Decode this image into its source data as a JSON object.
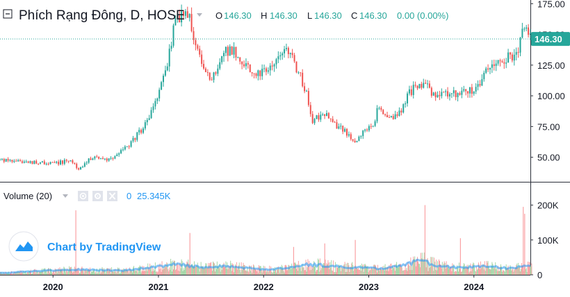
{
  "header": {
    "symbol_title": "Phích Rạng Đông, D, HOSE",
    "ohlc": [
      {
        "key": "O",
        "value": "146.30"
      },
      {
        "key": "H",
        "value": "146.30"
      },
      {
        "key": "L",
        "value": "146.30"
      },
      {
        "key": "C",
        "value": "146.30"
      }
    ],
    "change": "0.00 (0.00%)"
  },
  "last_price_label": "146.30",
  "volume_panel": {
    "title": "Volume (20)",
    "value_prefix": "0",
    "value": "25.345K"
  },
  "watermark": {
    "text": "Chart by TradingView"
  },
  "colors": {
    "up": "#26a69a",
    "down": "#ef5350",
    "up_volume": "#a5d6a7",
    "down_volume": "#faa1a4",
    "volume_ma": "#2196f3",
    "price_line": "#26a69a",
    "text": "#131722",
    "accent": "#2196f3"
  },
  "chart_data": {
    "type": "candlestick",
    "price_axis": {
      "ticks": [
        "50.00",
        "75.00",
        "100.00",
        "125.00",
        "150.00",
        "175.00"
      ],
      "range": [
        30,
        178
      ]
    },
    "volume_axis": {
      "ticks": [
        "0",
        "100K",
        "200K"
      ],
      "range": [
        0,
        225000
      ]
    },
    "time_axis": {
      "ticks": [
        "2020",
        "2021",
        "2022",
        "2023",
        "2024"
      ],
      "range": [
        "2019-07-01",
        "2024-07-15"
      ]
    },
    "price_path": [
      [
        "2019-07-01",
        48
      ],
      [
        "2019-10-01",
        46
      ],
      [
        "2020-01-01",
        45
      ],
      [
        "2020-03-01",
        47
      ],
      [
        "2020-04-01",
        40
      ],
      [
        "2020-05-15",
        50
      ],
      [
        "2020-07-15",
        48
      ],
      [
        "2020-09-15",
        58
      ],
      [
        "2020-11-01",
        72
      ],
      [
        "2020-12-01",
        85
      ],
      [
        "2021-01-01",
        100
      ],
      [
        "2021-02-01",
        125
      ],
      [
        "2021-03-01",
        162
      ],
      [
        "2021-04-15",
        165
      ],
      [
        "2021-05-15",
        140
      ],
      [
        "2021-06-15",
        115
      ],
      [
        "2021-07-15",
        118
      ],
      [
        "2021-08-15",
        135
      ],
      [
        "2021-09-15",
        138
      ],
      [
        "2021-10-15",
        125
      ],
      [
        "2021-11-15",
        122
      ],
      [
        "2022-01-01",
        118
      ],
      [
        "2022-02-15",
        128
      ],
      [
        "2022-04-01",
        137
      ],
      [
        "2022-05-01",
        120
      ],
      [
        "2022-06-01",
        100
      ],
      [
        "2022-06-20",
        80
      ],
      [
        "2022-08-01",
        85
      ],
      [
        "2022-09-15",
        75
      ],
      [
        "2022-10-15",
        70
      ],
      [
        "2022-11-15",
        62
      ],
      [
        "2022-12-15",
        72
      ],
      [
        "2023-01-15",
        75
      ],
      [
        "2023-02-01",
        90
      ],
      [
        "2023-03-15",
        80
      ],
      [
        "2023-04-15",
        85
      ],
      [
        "2023-05-15",
        100
      ],
      [
        "2023-06-15",
        108
      ],
      [
        "2023-07-15",
        112
      ],
      [
        "2023-08-15",
        100
      ],
      [
        "2023-09-15",
        100
      ],
      [
        "2023-10-15",
        103
      ],
      [
        "2023-11-15",
        101
      ],
      [
        "2023-12-15",
        104
      ],
      [
        "2024-01-15",
        108
      ],
      [
        "2024-02-15",
        120
      ],
      [
        "2024-03-15",
        125
      ],
      [
        "2024-04-15",
        130
      ],
      [
        "2024-05-15",
        133
      ],
      [
        "2024-06-01",
        136
      ],
      [
        "2024-06-15",
        148
      ],
      [
        "2024-06-25",
        157
      ],
      [
        "2024-07-15",
        146.3
      ]
    ],
    "volume_spikes": [
      [
        "2020-03-20",
        185000
      ],
      [
        "2021-04-20",
        120000
      ],
      [
        "2022-04-15",
        80000
      ],
      [
        "2022-08-01",
        90000
      ],
      [
        "2022-11-15",
        100000
      ],
      [
        "2023-07-15",
        200000
      ],
      [
        "2023-11-15",
        105000
      ],
      [
        "2024-06-20",
        195000
      ],
      [
        "2024-06-25",
        175000
      ]
    ],
    "volume_ma_levels": [
      [
        "2019-07-01",
        5000
      ],
      [
        "2020-03-01",
        15000
      ],
      [
        "2020-09-01",
        12000
      ],
      [
        "2021-03-01",
        30000
      ],
      [
        "2021-06-01",
        22000
      ],
      [
        "2021-09-01",
        25000
      ],
      [
        "2022-01-01",
        15000
      ],
      [
        "2022-04-01",
        20000
      ],
      [
        "2022-06-01",
        30000
      ],
      [
        "2022-09-01",
        25000
      ],
      [
        "2022-12-01",
        20000
      ],
      [
        "2023-03-01",
        18000
      ],
      [
        "2023-07-01",
        40000
      ],
      [
        "2023-09-01",
        25000
      ],
      [
        "2023-12-01",
        20000
      ],
      [
        "2024-03-01",
        25000
      ],
      [
        "2024-05-01",
        18000
      ],
      [
        "2024-07-15",
        25345
      ]
    ],
    "last_price": 146.3
  }
}
